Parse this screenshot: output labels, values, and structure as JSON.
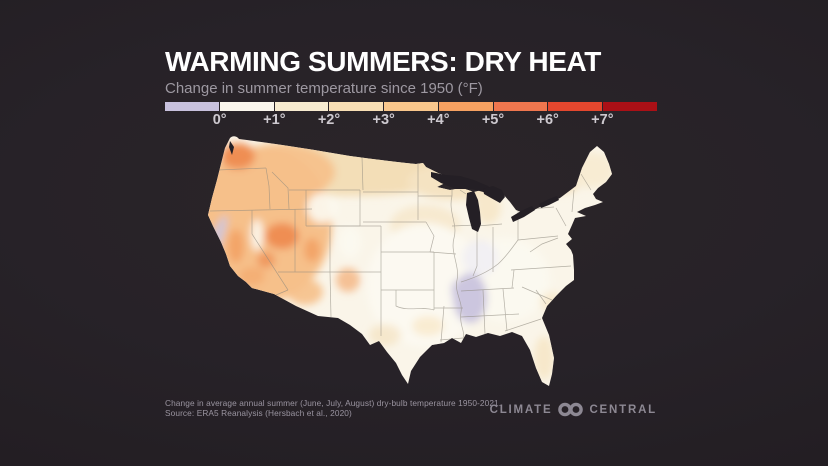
{
  "title": "WARMING SUMMERS: DRY HEAT",
  "subtitle": "Change in summer temperature since 1950 (°F)",
  "legend": {
    "tick_labels": [
      "0°",
      "+1°",
      "+2°",
      "+3°",
      "+4°",
      "+5°",
      "+6°",
      "+7°"
    ],
    "segment_colors": [
      "#c8c1dd",
      "#faf6ed",
      "#f7ebd0",
      "#f8dfb5",
      "#f9c78c",
      "#f6a161",
      "#ef764e",
      "#e4472e",
      "#aa1016"
    ]
  },
  "map": {
    "name": "Contiguous United States choropleth of summer warming",
    "palette": {
      "base_cream": "#faf5e9",
      "tan_north": "#f2dcb4",
      "tan_light": "#f5e3c2",
      "cream_tan": "#f7e8cb",
      "orange_light": "#f6c08a",
      "orange_mid": "#f3a468",
      "orange_strong": "#ef8e52",
      "near_white": "#fcf9f1",
      "pale_lavender": "#efedf4",
      "cooling_purple": "#ccc6df",
      "state_line": "#8e897e"
    }
  },
  "chart_data": {
    "type": "choropleth_map",
    "title": "WARMING SUMMERS: DRY HEAT",
    "subtitle": "Change in summer temperature since 1950 (°F)",
    "unit": "°F",
    "scale": {
      "boundary_labels": [
        "0°",
        "+1°",
        "+2°",
        "+3°",
        "+4°",
        "+5°",
        "+6°",
        "+7°"
      ],
      "bins": [
        "< 0",
        "0 to +1",
        "+1 to +2",
        "+2 to +3",
        "+3 to +4",
        "+4 to +5",
        "+5 to +6",
        "+6 to +7",
        "> +7"
      ],
      "bin_colors": [
        "#c8c1dd",
        "#faf6ed",
        "#f7ebd0",
        "#f8dfb5",
        "#f9c78c",
        "#f6a161",
        "#ef764e",
        "#e4472e",
        "#aa1016"
      ],
      "legend_position": "top"
    },
    "regions": [
      {
        "region": "Northwest Oregon / Southwest Washington",
        "change_F": "+3 to +4"
      },
      {
        "region": "Central Nevada and Utah",
        "change_F": "+3 to +4"
      },
      {
        "region": "Interior West (OR, ID, NV, UT, AZ, western MT)",
        "change_F": "+2 to +3"
      },
      {
        "region": "California Central Valley and Southern California",
        "change_F": "+2 to +3"
      },
      {
        "region": "Northern Plains and Upper Midwest (MT, ND, MN, WI)",
        "change_F": "+1 to +2"
      },
      {
        "region": "Northeast (northern NY, New England fringe)",
        "change_F": "+1 to +2"
      },
      {
        "region": "Rocky Mountain high country (patches)",
        "change_F": "0 to +1"
      },
      {
        "region": "Central and Southern Plains, Midwest, Mid-Atlantic, Southeast",
        "change_F": "0 to +1"
      },
      {
        "region": "Northern Mississippi / Alabama / western Tennessee",
        "change_F": "below 0 (slight cooling)"
      },
      {
        "region": "Northern California coast",
        "change_F": "below 0 (slight cooling)"
      },
      {
        "region": "Florida peninsula",
        "change_F": "+1 to +2"
      }
    ]
  },
  "footnote": {
    "line1": "Change in average annual summer (June, July, August) dry-bulb temperature 1950-2021.",
    "line2": "Source: ERA5 Reanalysis (Hersbach et al., 2020)"
  },
  "logo": {
    "word_left": "CLIMATE",
    "word_right": "CENTRAL"
  },
  "colors": {
    "background": "#241f25",
    "title": "#ffffff",
    "subtitle": "#9d98a1",
    "tick_label": "#cdc9cf",
    "footnote": "#9a94a0",
    "logo": "#8d8893"
  }
}
